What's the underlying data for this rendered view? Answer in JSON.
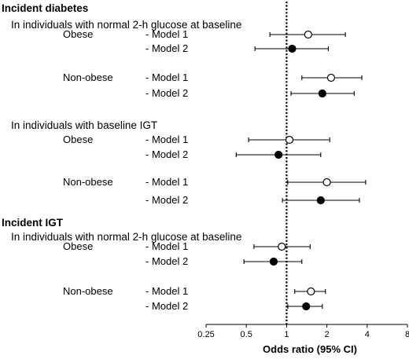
{
  "chart_data": {
    "type": "forest",
    "xlabel": "Odds ratio (95% CI)",
    "x_scale": "log2",
    "xlim": [
      0.25,
      8
    ],
    "ticks": [
      {
        "value": 0.25,
        "label": "0.25"
      },
      {
        "value": 0.5,
        "label": "0.5"
      },
      {
        "value": 1,
        "label": "1"
      },
      {
        "value": 2,
        "label": "2"
      },
      {
        "value": 4,
        "label": "4"
      },
      {
        "value": 8,
        "label": "8"
      }
    ],
    "reference_line": 1,
    "marker_legend": {
      "Model 1": "open circle",
      "Model 2": "filled circle"
    },
    "sections": [
      {
        "title": "Incident diabetes",
        "subgroups": [
          {
            "title": "In individuals with normal 2-h glucose at baseline",
            "groups": [
              {
                "label": "Obese",
                "rows": [
                  {
                    "model": "- Model 1",
                    "or": 1.45,
                    "lo": 0.75,
                    "hi": 2.75
                  },
                  {
                    "model": "- Model 2",
                    "or": 1.1,
                    "lo": 0.58,
                    "hi": 2.05
                  }
                ]
              },
              {
                "label": "Non-obese",
                "rows": [
                  {
                    "model": "- Model 1",
                    "or": 2.15,
                    "lo": 1.3,
                    "hi": 3.65
                  },
                  {
                    "model": "- Model 2",
                    "or": 1.85,
                    "lo": 1.08,
                    "hi": 3.2
                  }
                ]
              }
            ]
          },
          {
            "title": "In individuals with baseline IGT",
            "groups": [
              {
                "label": "Obese",
                "rows": [
                  {
                    "model": "- Model 1",
                    "or": 1.05,
                    "lo": 0.52,
                    "hi": 2.1
                  },
                  {
                    "model": "- Model 2",
                    "or": 0.87,
                    "lo": 0.42,
                    "hi": 1.8
                  }
                ]
              },
              {
                "label": "Non-obese",
                "rows": [
                  {
                    "model": "- Model 1",
                    "or": 2.0,
                    "lo": 1.02,
                    "hi": 3.9
                  },
                  {
                    "model": "- Model 2",
                    "or": 1.8,
                    "lo": 0.93,
                    "hi": 3.5
                  }
                ]
              }
            ]
          }
        ]
      },
      {
        "title": "Incident IGT",
        "subgroups": [
          {
            "title": "In individuals with normal 2-h glucose at baseline",
            "groups": [
              {
                "label": "Obese",
                "rows": [
                  {
                    "model": "- Model 1",
                    "or": 0.92,
                    "lo": 0.57,
                    "hi": 1.5
                  },
                  {
                    "model": "- Model 2",
                    "or": 0.8,
                    "lo": 0.48,
                    "hi": 1.3
                  }
                ]
              },
              {
                "label": "Non-obese",
                "rows": [
                  {
                    "model": "- Model 1",
                    "or": 1.52,
                    "lo": 1.15,
                    "hi": 1.95
                  },
                  {
                    "model": "- Model 2",
                    "or": 1.4,
                    "lo": 1.02,
                    "hi": 1.85
                  }
                ]
              }
            ]
          }
        ]
      }
    ]
  },
  "colors": {
    "ink": "#000000",
    "open_marker_fill": "#ffffff",
    "filled_marker_fill": "#000000"
  }
}
